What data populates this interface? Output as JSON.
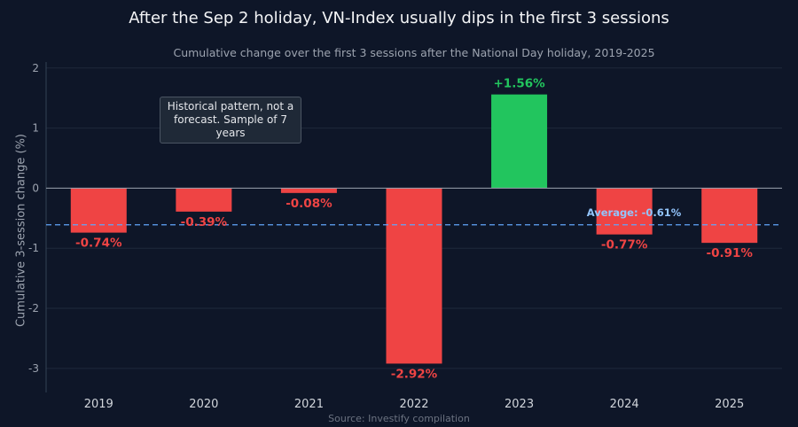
{
  "chart_data": {
    "type": "bar",
    "title": "After the Sep 2 holiday, VN-Index usually dips in the first 3 sessions",
    "subtitle": "Cumulative change over the first 3 sessions after the National Day holiday, 2019-2025",
    "xlabel": "",
    "ylabel": "Cumulative 3-session change (%)",
    "categories": [
      "2019",
      "2020",
      "2021",
      "2022",
      "2023",
      "2024",
      "2025"
    ],
    "values": [
      -0.74,
      -0.39,
      -0.08,
      -2.92,
      1.56,
      -0.77,
      -0.91
    ],
    "data_labels": [
      "-0.74%",
      "-0.39%",
      "-0.08%",
      "-2.92%",
      "+1.56%",
      "-0.77%",
      "-0.91%"
    ],
    "ylim": [
      -3.4,
      2.1
    ],
    "yticks": [
      -3,
      -2,
      -1,
      0,
      1,
      2
    ],
    "ytick_labels": [
      "-3",
      "-2",
      "-1",
      "0",
      "1",
      "2"
    ],
    "grid": true,
    "average": {
      "value": -0.61,
      "label": "Average: -0.61%"
    },
    "annotation": "Historical pattern, not a forecast. Sample of 7 years",
    "source": "Source: Investify compilation",
    "colors": {
      "positive": "#22c55e",
      "negative": "#ef4444",
      "average_line": "#60a5fa",
      "average_label": "#93c5fd",
      "background": "#0e1628",
      "grid": "#1e293b"
    }
  }
}
